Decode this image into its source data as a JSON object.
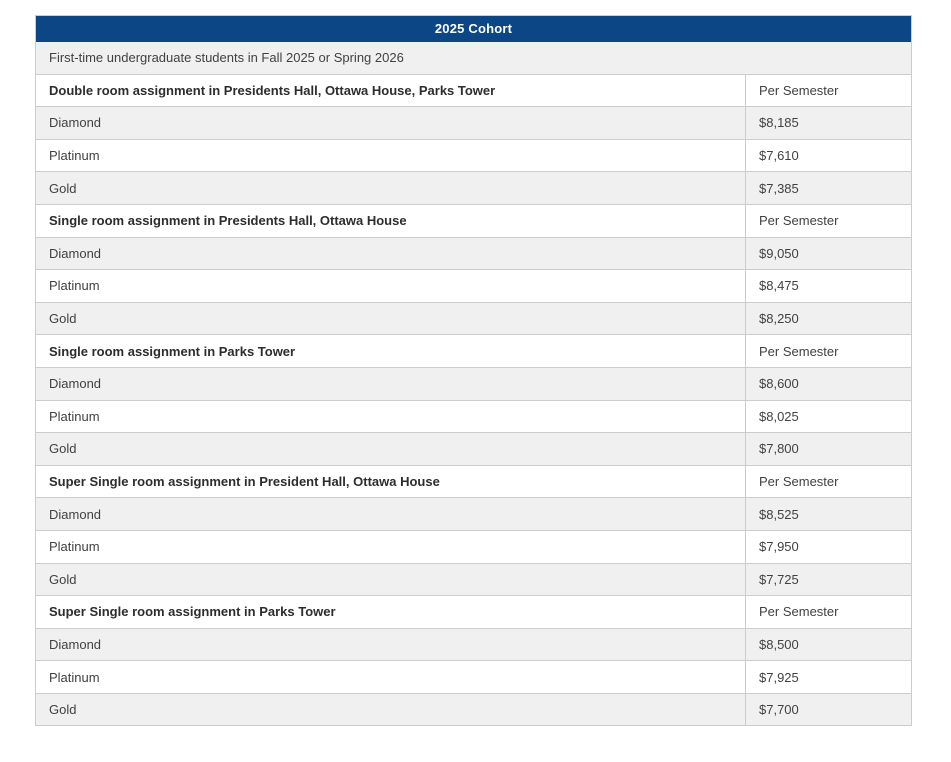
{
  "table": {
    "title": "2025 Cohort",
    "subtitle": "First-time undergraduate students in Fall 2025 or Spring 2026",
    "price_col_header": "Per Semester",
    "sections": [
      {
        "header": "Double room assignment in Presidents Hall, Ottawa House, Parks Tower",
        "rows": [
          {
            "tier": "Diamond",
            "price": "$8,185"
          },
          {
            "tier": "Platinum",
            "price": "$7,610"
          },
          {
            "tier": "Gold",
            "price": "$7,385"
          }
        ]
      },
      {
        "header": "Single room assignment in Presidents Hall, Ottawa House",
        "rows": [
          {
            "tier": "Diamond",
            "price": "$9,050"
          },
          {
            "tier": "Platinum",
            "price": "$8,475"
          },
          {
            "tier": "Gold",
            "price": "$8,250"
          }
        ]
      },
      {
        "header": "Single room assignment in Parks Tower",
        "rows": [
          {
            "tier": "Diamond",
            "price": "$8,600"
          },
          {
            "tier": "Platinum",
            "price": "$8,025"
          },
          {
            "tier": "Gold",
            "price": "$7,800"
          }
        ]
      },
      {
        "header": "Super Single room assignment in President Hall, Ottawa House",
        "rows": [
          {
            "tier": "Diamond",
            "price": "$8,525"
          },
          {
            "tier": "Platinum",
            "price": "$7,950"
          },
          {
            "tier": "Gold",
            "price": "$7,725"
          }
        ]
      },
      {
        "header": "Super Single room assignment in Parks Tower",
        "rows": [
          {
            "tier": "Diamond",
            "price": "$8,500"
          },
          {
            "tier": "Platinum",
            "price": "$7,925"
          },
          {
            "tier": "Gold",
            "price": "$7,700"
          }
        ]
      }
    ],
    "colors": {
      "title_bg": "#0d4685",
      "title_text": "#ffffff",
      "stripe_bg": "#f0f0f0",
      "row_bg": "#ffffff",
      "border": "#cccccc",
      "text": "#414141",
      "section_text": "#2d2d2d"
    }
  }
}
